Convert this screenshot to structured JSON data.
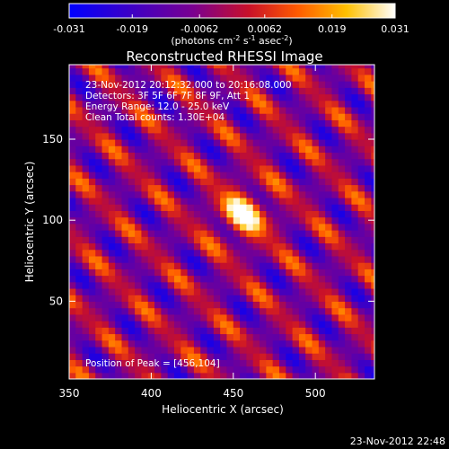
{
  "chart_data": {
    "type": "heatmap",
    "title": "Reconstructed RHESSI Image",
    "xlabel": "Heliocentric X (arcsec)",
    "ylabel": "Heliocentric Y (arcsec)",
    "xlim": [
      350,
      536
    ],
    "ylim": [
      2,
      196
    ],
    "x_ticks": [
      350,
      400,
      450,
      500
    ],
    "y_ticks": [
      50,
      100,
      150
    ],
    "colorbar": {
      "min": -0.031,
      "max": 0.031,
      "tick_labels": [
        "-0.031",
        "-0.019",
        "-0.0062",
        "0.0062",
        "0.019",
        "0.031"
      ],
      "tick_values": [
        -0.031,
        -0.019,
        -0.0062,
        0.0062,
        0.019,
        0.031
      ],
      "label_main": "(photons cm",
      "label_sup1": "-2",
      "label_mid1": " s",
      "label_sup2": "-1",
      "label_mid2": " asec",
      "label_sup3": "-2",
      "label_end": ")"
    },
    "annotations": [
      "23-Nov-2012 20:12:32.000 to 20:16:08.000",
      "Detectors: 3F 5F 6F 7F 8F 9F, Att 1",
      "Energy Range: 12.0 - 25.0 keV",
      "Clean     Total counts: 1.30E+04"
    ],
    "peak_label": "Position of Peak = [456,104]",
    "peak": [
      456,
      104
    ]
  },
  "footer_timestamp": "23-Nov-2012 22:48",
  "colors": {
    "background": "#000000",
    "text": "#ffffff"
  },
  "colormap": "blue-purple-red-yellow-white"
}
